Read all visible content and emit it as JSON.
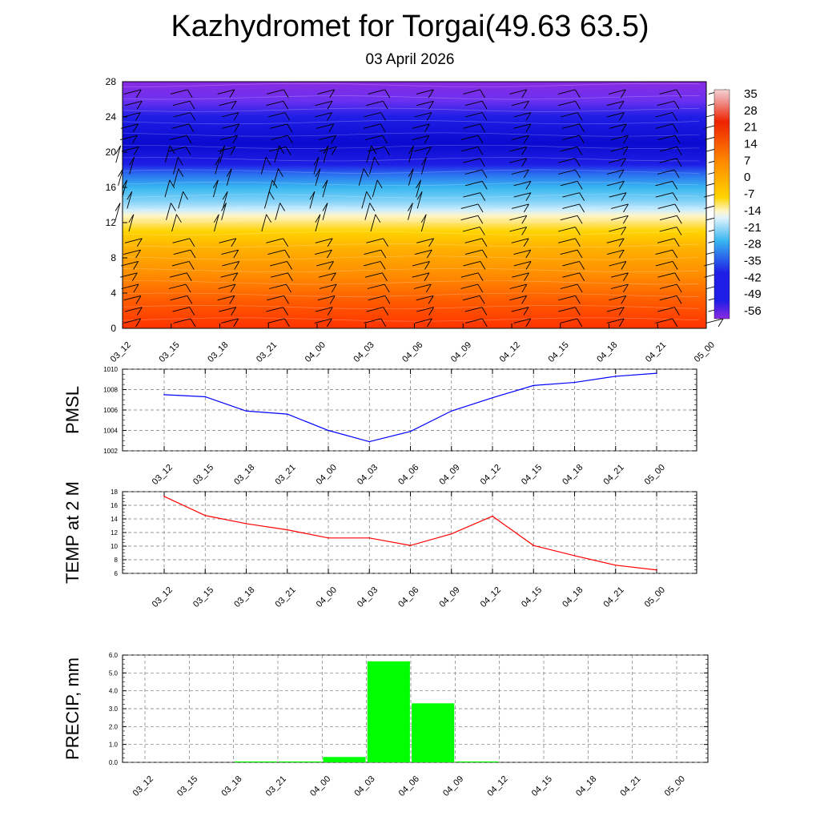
{
  "header": {
    "title": "Kazhydromet for Torgai(49.63 63.5)",
    "date": "03 April 2026"
  },
  "chart_data": [
    {
      "type": "heatmap",
      "name": "upper-air temperature cross-section with wind barbs",
      "x_ticks": [
        "03_12",
        "03_15",
        "03_18",
        "03_21",
        "04_00",
        "04_03",
        "04_06",
        "04_09",
        "04_12",
        "04_15",
        "04_18",
        "04_21",
        "05_00"
      ],
      "y_ticks": [
        "0",
        "4",
        "8",
        "12",
        "16",
        "20",
        "24",
        "28"
      ],
      "ylim": [
        0,
        28
      ],
      "colorbar_labels": [
        "35",
        "28",
        "21",
        "14",
        "7",
        "0",
        "-7",
        "-14",
        "-21",
        "-28",
        "-35",
        "-42",
        "-49",
        "-56"
      ],
      "colorbar_range": [
        -63,
        42
      ],
      "temperature_profile": [
        {
          "level": 0,
          "temp": 14
        },
        {
          "level": 4,
          "temp": 9
        },
        {
          "level": 8,
          "temp": 3
        },
        {
          "level": 11,
          "temp": -1
        },
        {
          "level": 12.5,
          "temp": -10
        },
        {
          "level": 13.5,
          "temp": -18
        },
        {
          "level": 16,
          "temp": -35
        },
        {
          "level": 18,
          "temp": -52
        },
        {
          "level": 20,
          "temp": -63
        },
        {
          "level": 24,
          "temp": -60
        },
        {
          "level": 28,
          "temp": -54
        }
      ],
      "colors": {
        "purple": "#8a2be2",
        "blue": "#1e1ee6",
        "sky": "#38b6f0",
        "pale": "#fff6c8",
        "yellow": "#ffd400",
        "orange": "#ff8c00",
        "red": "#ff3300",
        "barb": "#000000"
      }
    },
    {
      "type": "line",
      "ylabel": "PMSL",
      "categories": [
        "03_12",
        "03_15",
        "03_18",
        "03_21",
        "04_00",
        "04_03",
        "04_06",
        "04_09",
        "04_12",
        "04_15",
        "04_18",
        "04_21",
        "05_00"
      ],
      "values": [
        1007.5,
        1007.3,
        1005.9,
        1005.6,
        1004.0,
        1002.9,
        1003.9,
        1005.9,
        1007.2,
        1008.4,
        1008.7,
        1009.3,
        1009.6
      ],
      "ylim": [
        1002,
        1010
      ],
      "y_ticks": [
        "1002",
        "1004",
        "1006",
        "1008",
        "1010"
      ],
      "color": "#0000ff"
    },
    {
      "type": "line",
      "ylabel": "TEMP at 2 M",
      "categories": [
        "03_12",
        "03_15",
        "03_18",
        "03_21",
        "04_00",
        "04_03",
        "04_06",
        "04_09",
        "04_12",
        "04_15",
        "04_18",
        "04_21",
        "05_00"
      ],
      "values": [
        17.3,
        14.5,
        13.3,
        12.4,
        11.2,
        11.2,
        10.1,
        11.8,
        14.4,
        10.1,
        8.6,
        7.2,
        6.5
      ],
      "ylim": [
        6,
        18
      ],
      "y_ticks": [
        "6",
        "8",
        "10",
        "12",
        "14",
        "16",
        "18"
      ],
      "color": "#ff0000"
    },
    {
      "type": "bar",
      "ylabel": "PRECIP, mm",
      "categories": [
        "03_12",
        "03_15",
        "03_18",
        "03_21",
        "04_00",
        "04_03",
        "04_06",
        "04_09",
        "04_12",
        "04_15",
        "04_18",
        "04_21",
        "05_00"
      ],
      "values": [
        0,
        0,
        0.05,
        0.05,
        0.3,
        5.65,
        3.3,
        0.05,
        0,
        0,
        0,
        0,
        0
      ],
      "ylim": [
        0,
        6
      ],
      "y_ticks": [
        "0.0",
        "1.0",
        "2.0",
        "3.0",
        "4.0",
        "5.0",
        "6.0"
      ],
      "color": "#00ff00"
    }
  ]
}
